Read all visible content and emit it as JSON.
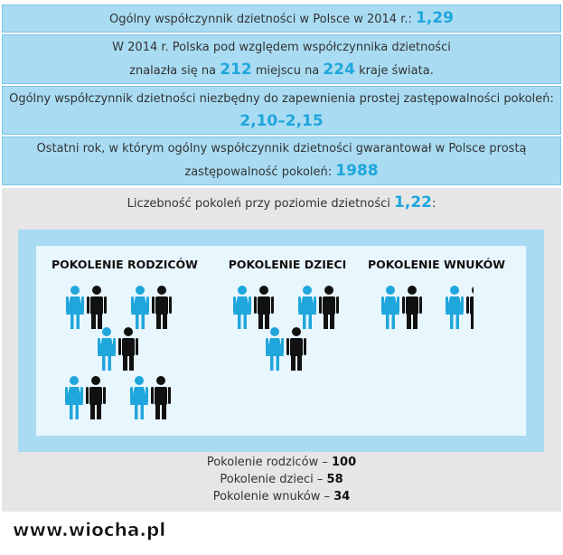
{
  "facts": [
    {
      "text": "Ogólny współczynnik dzietności w Polsce w 2014 r.:",
      "value": "1,29"
    },
    {
      "line1": "W 2014 r. Polska pod względem współczynnika dzietności",
      "before": "znalazła się na",
      "rank": "212",
      "middle": "miejscu na",
      "total": "224",
      "after": "kraje świata."
    },
    {
      "text": "Ogólny współczynnik dzietności niezbędny do zapewnienia prostej zastępowalności pokoleń:",
      "value": "2,10–2,15"
    },
    {
      "line1": "Ostatni rok, w którym ogólny współczynnik dzietności gwarantował w Polsce prostą",
      "text": "zastępowalność pokoleń:",
      "value": "1988"
    }
  ],
  "generations": {
    "title": "Liczebność pokoleń przy poziomie dzietności",
    "value": "1,22",
    "colon": ":",
    "groups": [
      "POKOLENIE RODZICÓW",
      "POKOLENIE DZIECI",
      "POKOLENIE WNUKÓW"
    ],
    "summary": [
      {
        "label": "Pokolenie rodziców –",
        "value": "100"
      },
      {
        "label": "Pokolenie dzieci –",
        "value": "58"
      },
      {
        "label": "Pokolenie wnuków –",
        "value": "34"
      }
    ]
  },
  "watermark": "www.wiocha.pl"
}
